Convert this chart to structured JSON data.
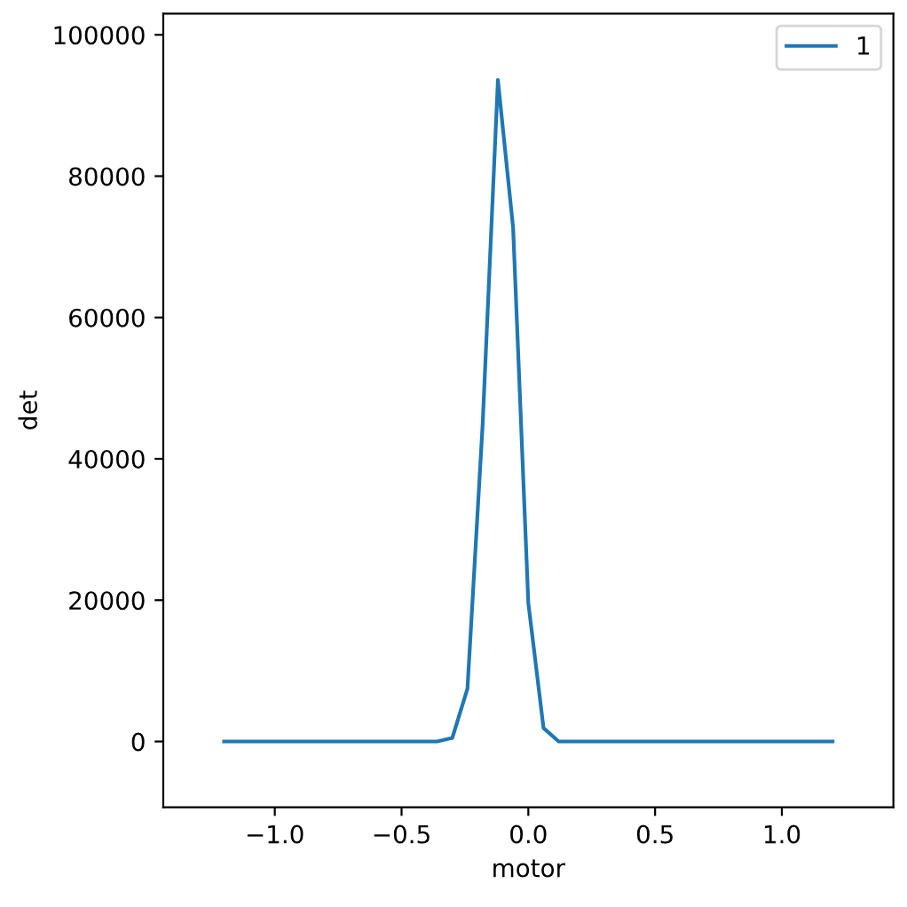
{
  "chart_data": {
    "type": "line",
    "xlabel": "motor",
    "ylabel": "det",
    "x": [
      -1.2,
      -1.14,
      -1.08,
      -1.02,
      -0.96,
      -0.9,
      -0.84,
      -0.78,
      -0.72,
      -0.66,
      -0.6,
      -0.54,
      -0.48,
      -0.42,
      -0.36,
      -0.3,
      -0.24,
      -0.18,
      -0.12,
      -0.06,
      0,
      0.06,
      0.12,
      0.18,
      0.24,
      0.3,
      0.36,
      0.42,
      0.48,
      0.54,
      0.6,
      0.66,
      0.72,
      0.78,
      0.84,
      0.9,
      0.96,
      1.02,
      1.08,
      1.14,
      1.2
    ],
    "series": [
      {
        "name": "1",
        "color": "#1f77b4",
        "values": [
          0,
          0,
          0,
          0,
          0,
          0,
          0,
          0,
          0,
          0,
          0,
          0,
          0,
          0,
          0,
          500,
          7500,
          45000,
          93600,
          72700,
          19600,
          1900,
          0,
          0,
          0,
          0,
          0,
          0,
          0,
          0,
          0,
          0,
          0,
          0,
          0,
          0,
          0,
          0,
          0,
          0,
          0
        ]
      }
    ],
    "xlim": [
      -1.44,
      1.44
    ],
    "ylim": [
      -9300,
      103000
    ],
    "xticks": [
      {
        "value": -1.0,
        "label": "−1.0"
      },
      {
        "value": -0.5,
        "label": "−0.5"
      },
      {
        "value": 0,
        "label": "0.0"
      },
      {
        "value": 0.5,
        "label": "0.5"
      },
      {
        "value": 1.0,
        "label": "1.0"
      }
    ],
    "yticks": [
      0,
      20000,
      40000,
      60000,
      80000,
      100000
    ],
    "legend": "top right",
    "grid": false
  }
}
